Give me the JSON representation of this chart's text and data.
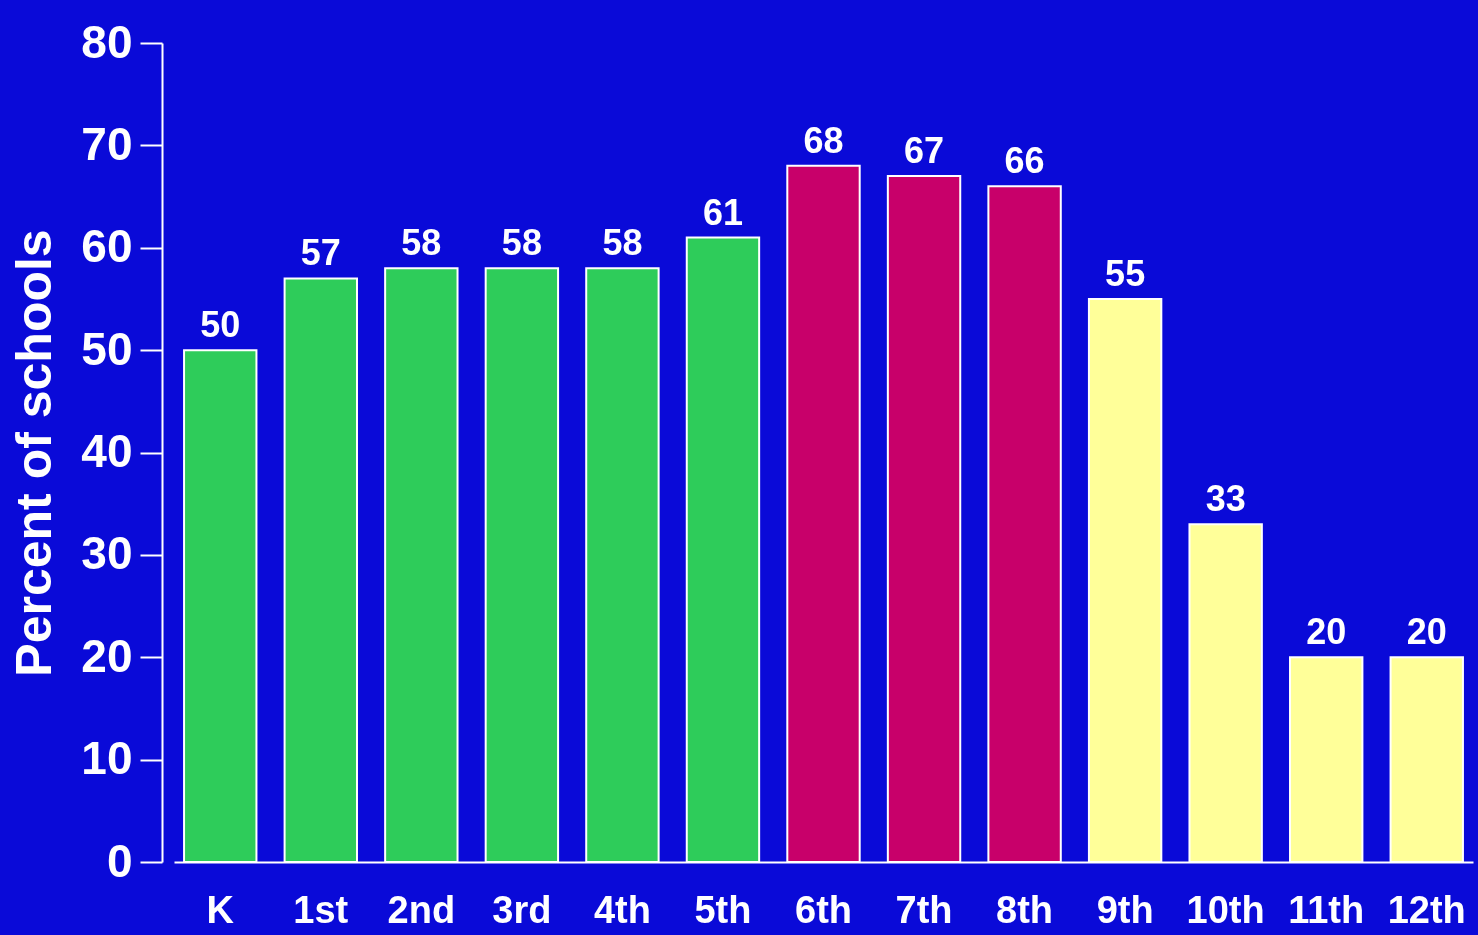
{
  "chart_data": {
    "type": "bar",
    "ylabel": "Percent of schools",
    "categories": [
      "K",
      "1st",
      "2nd",
      "3rd",
      "4th",
      "5th",
      "6th",
      "7th",
      "8th",
      "9th",
      "10th",
      "11th",
      "12th"
    ],
    "values": [
      50,
      57,
      58,
      58,
      58,
      61,
      68,
      67,
      66,
      55,
      33,
      20,
      20
    ],
    "colors": [
      "#2ecc5a",
      "#2ecc5a",
      "#2ecc5a",
      "#2ecc5a",
      "#2ecc5a",
      "#2ecc5a",
      "#c8006a",
      "#c8006a",
      "#c8006a",
      "#ffff99",
      "#ffff99",
      "#ffff99",
      "#ffff99"
    ],
    "ylim": [
      0,
      80
    ],
    "yticks": [
      0,
      10,
      20,
      30,
      40,
      50,
      60,
      70,
      80
    ],
    "data_labels": true,
    "grid": false
  }
}
